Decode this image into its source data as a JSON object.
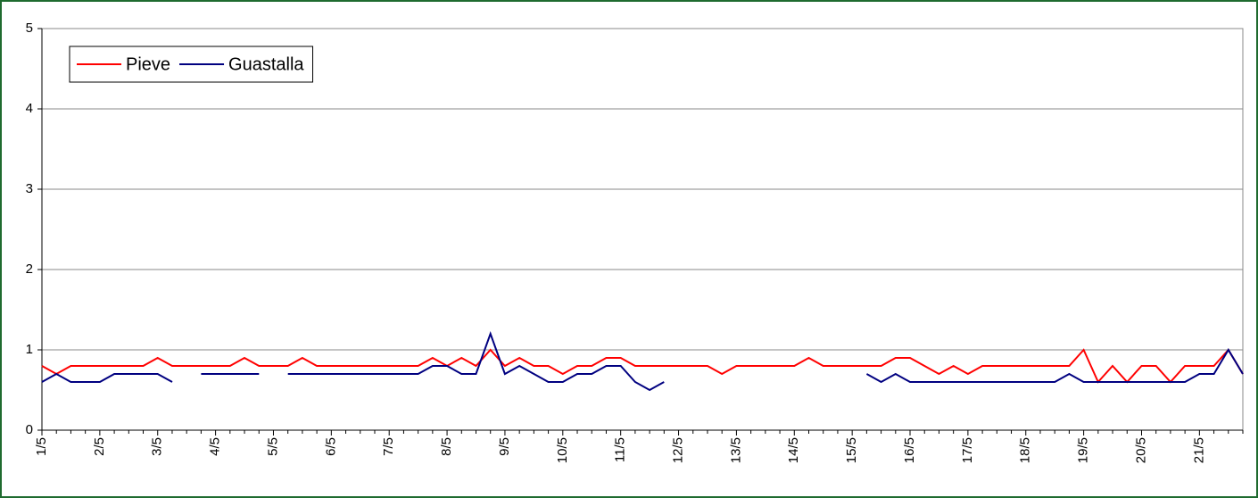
{
  "chart_data": {
    "type": "line",
    "categories": [
      "1/5",
      null,
      null,
      null,
      "2/5",
      null,
      null,
      null,
      "3/5",
      null,
      null,
      null,
      "4/5",
      null,
      null,
      null,
      "5/5",
      null,
      null,
      null,
      "6/5",
      null,
      null,
      null,
      "7/5",
      null,
      null,
      null,
      "8/5",
      null,
      null,
      null,
      "9/5",
      null,
      null,
      null,
      "10/5",
      null,
      null,
      null,
      "11/5",
      null,
      null,
      null,
      "12/5",
      null,
      null,
      null,
      "13/5",
      null,
      null,
      null,
      "14/5",
      null,
      null,
      null,
      "15/5",
      null,
      null,
      null,
      "16/5",
      null,
      null,
      null,
      "17/5",
      null,
      null,
      null,
      "18/5",
      null,
      null,
      null,
      "19/5",
      null,
      null,
      null,
      "20/5",
      null,
      null,
      null,
      "21/5",
      null,
      null,
      null
    ],
    "series": [
      {
        "name": "Pieve",
        "color": "#ff0000",
        "values": [
          0.8,
          0.7,
          0.8,
          0.8,
          0.8,
          0.8,
          0.8,
          0.8,
          0.9,
          0.8,
          0.8,
          0.8,
          0.8,
          0.8,
          0.9,
          0.8,
          0.8,
          0.8,
          0.9,
          0.8,
          0.8,
          0.8,
          0.8,
          0.8,
          0.8,
          0.8,
          0.8,
          0.9,
          0.8,
          0.9,
          0.8,
          1.0,
          0.8,
          0.9,
          0.8,
          0.8,
          0.7,
          0.8,
          0.8,
          0.9,
          0.9,
          0.8,
          0.8,
          0.8,
          0.8,
          0.8,
          0.8,
          0.7,
          0.8,
          0.8,
          0.8,
          0.8,
          0.8,
          0.9,
          0.8,
          0.8,
          0.8,
          0.8,
          0.8,
          0.9,
          0.9,
          0.8,
          0.7,
          0.8,
          0.7,
          0.8,
          0.8,
          0.8,
          0.8,
          0.8,
          0.8,
          0.8,
          1.0,
          0.6,
          0.8,
          0.6,
          0.8,
          0.8,
          0.6,
          0.8,
          0.8,
          0.8,
          1.0,
          0.7
        ]
      },
      {
        "name": "Guastalla",
        "color": "#000080",
        "values": [
          0.6,
          0.7,
          0.6,
          0.6,
          0.6,
          0.7,
          0.7,
          0.7,
          0.7,
          0.6,
          null,
          0.7,
          0.7,
          0.7,
          0.7,
          0.7,
          null,
          0.7,
          0.7,
          0.7,
          0.7,
          0.7,
          0.7,
          0.7,
          0.7,
          0.7,
          0.7,
          0.8,
          0.8,
          0.7,
          0.7,
          1.2,
          0.7,
          0.8,
          0.7,
          0.6,
          0.6,
          0.7,
          0.7,
          0.8,
          0.8,
          0.6,
          0.5,
          0.6,
          null,
          null,
          null,
          null,
          null,
          null,
          null,
          null,
          null,
          null,
          null,
          null,
          null,
          0.7,
          0.6,
          0.7,
          0.6,
          0.6,
          0.6,
          0.6,
          0.6,
          0.6,
          0.6,
          0.6,
          0.6,
          0.6,
          0.6,
          0.7,
          0.6,
          0.6,
          0.6,
          0.6,
          0.6,
          0.6,
          0.6,
          0.6,
          0.7,
          0.7,
          1.0,
          0.7
        ]
      }
    ],
    "ylim": [
      0,
      5
    ],
    "yticks": [
      0,
      1,
      2,
      3,
      4,
      5
    ],
    "grid": true,
    "legend": "upper left"
  }
}
